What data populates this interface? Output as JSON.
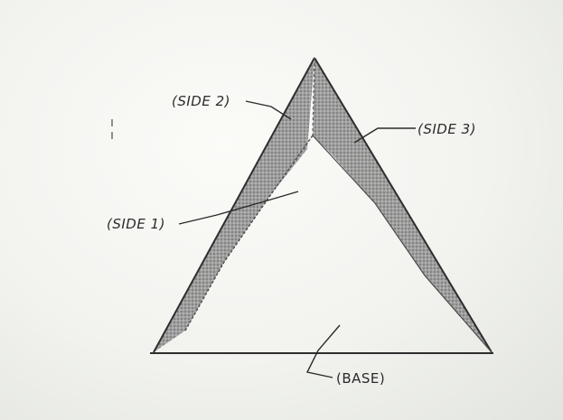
{
  "diagram": {
    "labels": {
      "side1": "(SIDE 1)",
      "side2": "(SIDE 2)",
      "side3": "(SIDE 3)",
      "base": "(BASE)"
    },
    "colors": {
      "ink": "#2b2b2b",
      "shading": "#8d8d8d"
    }
  }
}
